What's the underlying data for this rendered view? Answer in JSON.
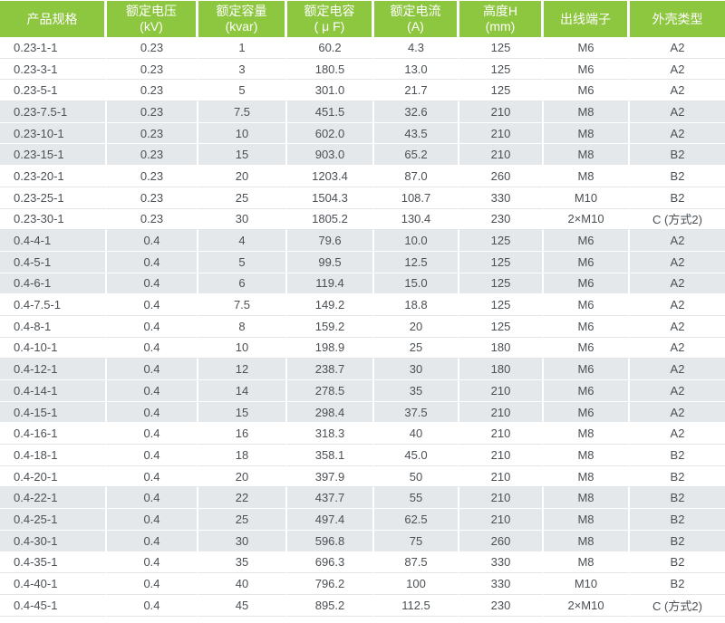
{
  "theme": {
    "header_bg": "#8DC63F",
    "band_bg": "#E5E8EB",
    "header_text": "#FFFFFF",
    "body_text": "#4B5055",
    "row_line": "#E2E5E8"
  },
  "table": {
    "columns": [
      {
        "label": "产品规格",
        "unit": ""
      },
      {
        "label": "额定电压",
        "unit": "(kV)"
      },
      {
        "label": "额定容量",
        "unit": "(kvar)"
      },
      {
        "label": "额定电容",
        "unit": "( μ F)"
      },
      {
        "label": "额定电流",
        "unit": "(A)"
      },
      {
        "label": "高度H",
        "unit": "(mm)"
      },
      {
        "label": "出线端子",
        "unit": ""
      },
      {
        "label": "外壳类型",
        "unit": ""
      }
    ],
    "rows": [
      [
        "0.23-1-1",
        "0.23",
        "1",
        "60.2",
        "4.3",
        "125",
        "M6",
        "A2"
      ],
      [
        "0.23-3-1",
        "0.23",
        "3",
        "180.5",
        "13.0",
        "125",
        "M6",
        "A2"
      ],
      [
        "0.23-5-1",
        "0.23",
        "5",
        "301.0",
        "21.7",
        "125",
        "M6",
        "A2"
      ],
      [
        "0.23-7.5-1",
        "0.23",
        "7.5",
        "451.5",
        "32.6",
        "210",
        "M8",
        "A2"
      ],
      [
        "0.23-10-1",
        "0.23",
        "10",
        "602.0",
        "43.5",
        "210",
        "M8",
        "A2"
      ],
      [
        "0.23-15-1",
        "0.23",
        "15",
        "903.0",
        "65.2",
        "210",
        "M8",
        "B2"
      ],
      [
        "0.23-20-1",
        "0.23",
        "20",
        "1203.4",
        "87.0",
        "260",
        "M8",
        "B2"
      ],
      [
        "0.23-25-1",
        "0.23",
        "25",
        "1504.3",
        "108.7",
        "330",
        "M10",
        "B2"
      ],
      [
        "0.23-30-1",
        "0.23",
        "30",
        "1805.2",
        "130.4",
        "230",
        "2×M10",
        "C (方式2)"
      ],
      [
        "0.4-4-1",
        "0.4",
        "4",
        "79.6",
        "10.0",
        "125",
        "M6",
        "A2"
      ],
      [
        "0.4-5-1",
        "0.4",
        "5",
        "99.5",
        "12.5",
        "125",
        "M6",
        "A2"
      ],
      [
        "0.4-6-1",
        "0.4",
        "6",
        "119.4",
        "15.0",
        "125",
        "M6",
        "A2"
      ],
      [
        "0.4-7.5-1",
        "0.4",
        "7.5",
        "149.2",
        "18.8",
        "125",
        "M6",
        "A2"
      ],
      [
        "0.4-8-1",
        "0.4",
        "8",
        "159.2",
        "20",
        "125",
        "M6",
        "A2"
      ],
      [
        "0.4-10-1",
        "0.4",
        "10",
        "198.9",
        "25",
        "180",
        "M6",
        "A2"
      ],
      [
        "0.4-12-1",
        "0.4",
        "12",
        "238.7",
        "30",
        "180",
        "M6",
        "A2"
      ],
      [
        "0.4-14-1",
        "0.4",
        "14",
        "278.5",
        "35",
        "210",
        "M6",
        "A2"
      ],
      [
        "0.4-15-1",
        "0.4",
        "15",
        "298.4",
        "37.5",
        "210",
        "M6",
        "A2"
      ],
      [
        "0.4-16-1",
        "0.4",
        "16",
        "318.3",
        "40",
        "210",
        "M8",
        "A2"
      ],
      [
        "0.4-18-1",
        "0.4",
        "18",
        "358.1",
        "45.0",
        "210",
        "M8",
        "B2"
      ],
      [
        "0.4-20-1",
        "0.4",
        "20",
        "397.9",
        "50",
        "210",
        "M8",
        "B2"
      ],
      [
        "0.4-22-1",
        "0.4",
        "22",
        "437.7",
        "55",
        "210",
        "M8",
        "B2"
      ],
      [
        "0.4-25-1",
        "0.4",
        "25",
        "497.4",
        "62.5",
        "210",
        "M8",
        "B2"
      ],
      [
        "0.4-30-1",
        "0.4",
        "30",
        "596.8",
        "75",
        "260",
        "M8",
        "B2"
      ],
      [
        "0.4-35-1",
        "0.4",
        "35",
        "696.3",
        "87.5",
        "330",
        "M8",
        "B2"
      ],
      [
        "0.4-40-1",
        "0.4",
        "40",
        "796.2",
        "100",
        "330",
        "M10",
        "B2"
      ],
      [
        "0.4-45-1",
        "0.4",
        "45",
        "895.2",
        "112.5",
        "230",
        "2×M10",
        "C (方式2)"
      ]
    ],
    "band_group_size": 3
  }
}
